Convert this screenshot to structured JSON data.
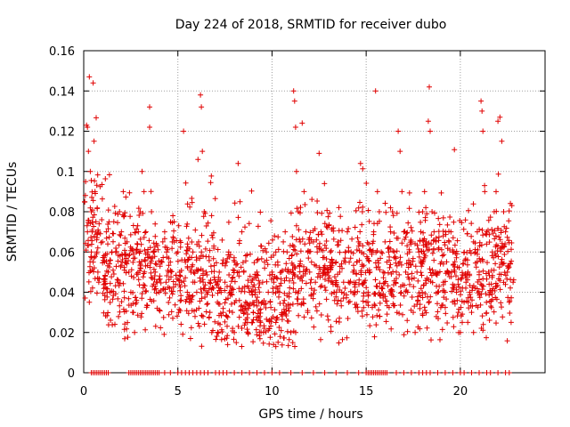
{
  "chart_data": {
    "type": "scatter",
    "title": "Day 224 of 2018, SRMTID for receiver dubo",
    "xlabel": "GPS time / hours",
    "ylabel": "SRMTID / TECUs",
    "xlim": [
      0,
      24.5
    ],
    "ylim": [
      0,
      0.16
    ],
    "xticks": [
      0,
      5,
      10,
      15,
      20
    ],
    "xtick_labels": [
      "0",
      "5",
      "10",
      "15",
      "20"
    ],
    "yticks": [
      0,
      0.02,
      0.04,
      0.06,
      0.08,
      0.1,
      0.12,
      0.14,
      0.16
    ],
    "ytick_labels": [
      "0",
      "0.02",
      "0.04",
      "0.06",
      "0.08",
      "0.1",
      "0.12",
      "0.14",
      "0.16"
    ],
    "grid": true,
    "marker": "plus",
    "color": "#e00000",
    "series": [
      {
        "name": "SRMTID",
        "points": [
          [
            0.05,
            0.085
          ],
          [
            0.1,
            0.095
          ],
          [
            0.15,
            0.123
          ],
          [
            0.2,
            0.122
          ],
          [
            0.25,
            0.11
          ],
          [
            0.3,
            0.147
          ],
          [
            0.35,
            0.1
          ],
          [
            0.4,
            0.08
          ],
          [
            0.45,
            0.07
          ],
          [
            0.5,
            0.144
          ],
          [
            0.55,
            0.115
          ],
          [
            0.6,
            0.09
          ],
          [
            0.65,
            0.075
          ],
          [
            0.7,
            0.06
          ],
          [
            0.75,
            0.05
          ],
          [
            0.8,
            0.045
          ],
          [
            0.3,
            0.035
          ],
          [
            0.4,
            0.06
          ],
          [
            0.5,
            0.055
          ],
          [
            0.2,
            0.07
          ],
          [
            1.0,
            0.065
          ],
          [
            1.1,
            0.055
          ],
          [
            1.2,
            0.07
          ],
          [
            1.3,
            0.05
          ],
          [
            1.4,
            0.04
          ],
          [
            1.5,
            0.06
          ],
          [
            1.6,
            0.075
          ],
          [
            1.7,
            0.06
          ],
          [
            1.8,
            0.045
          ],
          [
            1.9,
            0.08
          ],
          [
            2.0,
            0.07
          ],
          [
            2.1,
            0.09
          ],
          [
            2.2,
            0.055
          ],
          [
            2.3,
            0.065
          ],
          [
            2.4,
            0.05
          ],
          [
            2.5,
            0.04
          ],
          [
            2.6,
            0.03
          ],
          [
            2.7,
            0.02
          ],
          [
            2.8,
            0.06
          ],
          [
            2.9,
            0.07
          ],
          [
            3.0,
            0.08
          ],
          [
            3.1,
            0.1
          ],
          [
            3.2,
            0.09
          ],
          [
            3.3,
            0.07
          ],
          [
            3.4,
            0.06
          ],
          [
            3.5,
            0.132
          ],
          [
            3.5,
            0.122
          ],
          [
            3.6,
            0.08
          ],
          [
            3.7,
            0.06
          ],
          [
            3.8,
            0.05
          ],
          [
            3.9,
            0.045
          ],
          [
            4.0,
            0.04
          ],
          [
            4.1,
            0.055
          ],
          [
            4.2,
            0.065
          ],
          [
            4.3,
            0.07
          ],
          [
            4.4,
            0.06
          ],
          [
            4.5,
            0.05
          ],
          [
            4.6,
            0.055
          ],
          [
            4.7,
            0.065
          ],
          [
            4.8,
            0.075
          ],
          [
            5.0,
            0.06
          ],
          [
            5.1,
            0.05
          ],
          [
            5.2,
            0.045
          ],
          [
            5.3,
            0.12
          ],
          [
            5.4,
            0.055
          ],
          [
            5.5,
            0.04
          ],
          [
            5.6,
            0.035
          ],
          [
            5.7,
            0.05
          ],
          [
            5.8,
            0.06
          ],
          [
            5.9,
            0.045
          ],
          [
            6.0,
            0.04
          ],
          [
            6.1,
            0.065
          ],
          [
            6.2,
            0.138
          ],
          [
            6.25,
            0.132
          ],
          [
            6.3,
            0.11
          ],
          [
            6.4,
            0.08
          ],
          [
            6.5,
            0.05
          ],
          [
            6.6,
            0.04
          ],
          [
            6.7,
            0.03
          ],
          [
            6.8,
            0.02
          ],
          [
            7.0,
            0.045
          ],
          [
            7.1,
            0.035
          ],
          [
            7.2,
            0.05
          ],
          [
            7.3,
            0.04
          ],
          [
            7.4,
            0.03
          ],
          [
            7.5,
            0.045
          ],
          [
            7.6,
            0.055
          ],
          [
            7.7,
            0.06
          ],
          [
            7.8,
            0.04
          ],
          [
            7.9,
            0.03
          ],
          [
            8.0,
            0.02
          ],
          [
            8.1,
            0.015
          ],
          [
            8.2,
            0.104
          ],
          [
            8.3,
            0.085
          ],
          [
            8.4,
            0.07
          ],
          [
            8.5,
            0.05
          ],
          [
            8.6,
            0.035
          ],
          [
            8.7,
            0.025
          ],
          [
            8.8,
            0.04
          ],
          [
            8.9,
            0.045
          ],
          [
            9.0,
            0.03
          ],
          [
            9.1,
            0.04
          ],
          [
            9.2,
            0.05
          ],
          [
            9.3,
            0.035
          ],
          [
            9.4,
            0.025
          ],
          [
            9.5,
            0.045
          ],
          [
            9.6,
            0.055
          ],
          [
            9.7,
            0.06
          ],
          [
            9.8,
            0.04
          ],
          [
            9.9,
            0.035
          ],
          [
            10.0,
            0.05
          ],
          [
            10.1,
            0.045
          ],
          [
            10.2,
            0.06
          ],
          [
            10.3,
            0.055
          ],
          [
            10.4,
            0.04
          ],
          [
            10.5,
            0.05
          ],
          [
            10.6,
            0.065
          ],
          [
            10.7,
            0.07
          ],
          [
            10.8,
            0.06
          ],
          [
            10.9,
            0.05
          ],
          [
            11.0,
            0.02
          ],
          [
            11.1,
            0.015
          ],
          [
            11.15,
            0.14
          ],
          [
            11.2,
            0.135
          ],
          [
            11.25,
            0.122
          ],
          [
            11.3,
            0.1
          ],
          [
            11.4,
            0.08
          ],
          [
            11.5,
            0.065
          ],
          [
            11.6,
            0.124
          ],
          [
            11.7,
            0.09
          ],
          [
            11.8,
            0.07
          ],
          [
            11.9,
            0.06
          ],
          [
            12.0,
            0.05
          ],
          [
            12.1,
            0.055
          ],
          [
            12.2,
            0.065
          ],
          [
            12.3,
            0.045
          ],
          [
            12.4,
            0.06
          ],
          [
            12.5,
            0.109
          ],
          [
            12.6,
            0.07
          ],
          [
            12.7,
            0.05
          ],
          [
            13.0,
            0.05
          ],
          [
            13.1,
            0.06
          ],
          [
            13.2,
            0.045
          ],
          [
            13.3,
            0.04
          ],
          [
            13.4,
            0.055
          ],
          [
            13.5,
            0.065
          ],
          [
            13.6,
            0.05
          ],
          [
            13.7,
            0.04
          ],
          [
            13.8,
            0.045
          ],
          [
            13.9,
            0.06
          ],
          [
            14.0,
            0.07
          ],
          [
            14.1,
            0.055
          ],
          [
            14.2,
            0.06
          ],
          [
            14.3,
            0.05
          ],
          [
            14.4,
            0.04
          ],
          [
            14.5,
            0.055
          ],
          [
            14.6,
            0.065
          ],
          [
            14.7,
            0.104
          ],
          [
            14.8,
            0.08
          ],
          [
            14.9,
            0.045
          ],
          [
            15.0,
            0.035
          ],
          [
            15.1,
            0.04
          ],
          [
            15.2,
            0.05
          ],
          [
            15.3,
            0.06
          ],
          [
            15.4,
            0.07
          ],
          [
            15.5,
            0.14
          ],
          [
            15.6,
            0.09
          ],
          [
            15.7,
            0.08
          ],
          [
            15.8,
            0.06
          ],
          [
            15.9,
            0.05
          ],
          [
            16.0,
            0.065
          ],
          [
            16.1,
            0.055
          ],
          [
            16.2,
            0.06
          ],
          [
            16.3,
            0.07
          ],
          [
            16.4,
            0.08
          ],
          [
            16.5,
            0.06
          ],
          [
            16.6,
            0.05
          ],
          [
            16.7,
            0.12
          ],
          [
            16.8,
            0.11
          ],
          [
            16.9,
            0.09
          ],
          [
            17.0,
            0.07
          ],
          [
            17.1,
            0.05
          ],
          [
            17.2,
            0.04
          ],
          [
            17.3,
            0.06
          ],
          [
            17.4,
            0.065
          ],
          [
            17.5,
            0.03
          ],
          [
            17.6,
            0.02
          ],
          [
            17.7,
            0.05
          ],
          [
            17.8,
            0.06
          ],
          [
            17.9,
            0.07
          ],
          [
            18.0,
            0.08
          ],
          [
            18.1,
            0.09
          ],
          [
            18.2,
            0.065
          ],
          [
            18.3,
            0.125
          ],
          [
            18.35,
            0.142
          ],
          [
            18.4,
            0.12
          ],
          [
            18.5,
            0.08
          ],
          [
            18.6,
            0.07
          ],
          [
            18.7,
            0.05
          ],
          [
            18.8,
            0.04
          ],
          [
            19.0,
            0.055
          ],
          [
            19.1,
            0.045
          ],
          [
            19.2,
            0.04
          ],
          [
            19.3,
            0.05
          ],
          [
            19.4,
            0.065
          ],
          [
            19.5,
            0.07
          ],
          [
            19.6,
            0.06
          ],
          [
            19.7,
            0.05
          ],
          [
            19.8,
            0.04
          ],
          [
            19.9,
            0.03
          ],
          [
            20.0,
            0.02
          ],
          [
            20.1,
            0.025
          ],
          [
            20.2,
            0.035
          ],
          [
            20.3,
            0.045
          ],
          [
            20.4,
            0.05
          ],
          [
            20.5,
            0.04
          ],
          [
            20.6,
            0.03
          ],
          [
            20.7,
            0.02
          ],
          [
            20.8,
            0.06
          ],
          [
            20.9,
            0.07
          ],
          [
            21.0,
            0.05
          ],
          [
            21.1,
            0.135
          ],
          [
            21.15,
            0.13
          ],
          [
            21.2,
            0.12
          ],
          [
            21.3,
            0.09
          ],
          [
            21.4,
            0.07
          ],
          [
            21.5,
            0.05
          ],
          [
            21.6,
            0.04
          ],
          [
            21.7,
            0.06
          ],
          [
            21.8,
            0.08
          ],
          [
            21.9,
            0.09
          ],
          [
            22.0,
            0.125
          ],
          [
            22.1,
            0.127
          ],
          [
            22.2,
            0.115
          ],
          [
            22.3,
            0.08
          ],
          [
            22.4,
            0.07
          ],
          [
            22.5,
            0.05
          ],
          [
            22.6,
            0.035
          ],
          [
            22.7,
            0.025
          ],
          [
            22.8,
            0.045
          ]
        ],
        "zero_hours": [
          0.4,
          0.5,
          0.6,
          0.7,
          0.8,
          0.9,
          1.0,
          1.1,
          1.2,
          1.3,
          2.4,
          2.5,
          2.6,
          2.7,
          2.8,
          2.9,
          3.0,
          3.1,
          3.2,
          3.3,
          3.4,
          3.5,
          3.6,
          3.7,
          3.8,
          3.9,
          4.0,
          4.3,
          4.6,
          5.0,
          5.2,
          5.4,
          5.6,
          5.8,
          6.0,
          6.2,
          6.4,
          6.6,
          7.0,
          7.2,
          7.4,
          7.6,
          8.0,
          8.4,
          8.8,
          9.2,
          9.6,
          10.0,
          10.4,
          11.0,
          11.6,
          12.2,
          12.8,
          13.4,
          14.0,
          14.6,
          15.0,
          15.1,
          15.2,
          15.3,
          15.4,
          15.5,
          15.6,
          15.7,
          15.8,
          15.9,
          16.0,
          16.1,
          16.6,
          17.0,
          17.4,
          17.8,
          18.0,
          18.2,
          18.4,
          18.8,
          19.2,
          19.6,
          20.0,
          20.2,
          20.6,
          21.0,
          21.4,
          21.6,
          22.0,
          22.4,
          22.6
        ]
      }
    ]
  }
}
